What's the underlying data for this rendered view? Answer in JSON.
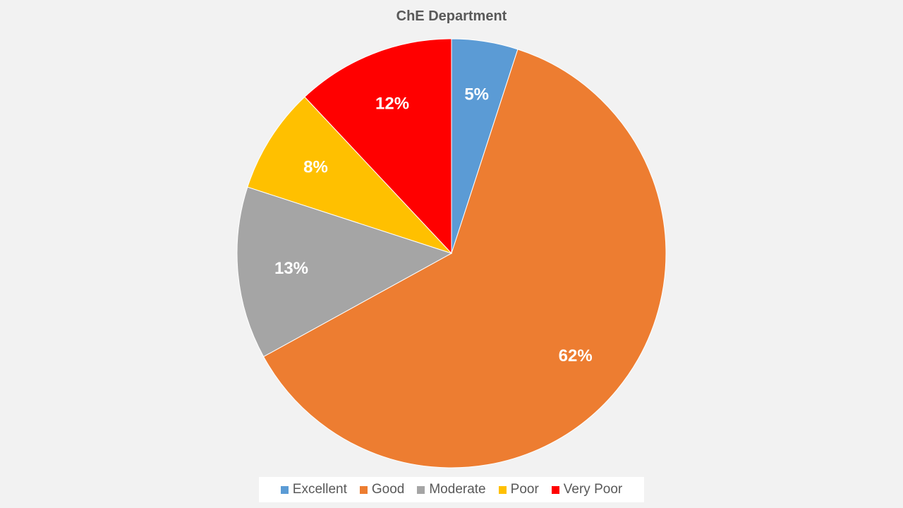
{
  "chart_data": {
    "type": "pie",
    "title": "ChE Department",
    "categories": [
      "Excellent",
      "Good",
      "Moderate",
      "Poor",
      "Very Poor"
    ],
    "values": [
      5,
      62,
      13,
      8,
      12
    ],
    "labels": [
      "5%",
      "62%",
      "13%",
      "8%",
      "12%"
    ],
    "colors": [
      "#5b9bd5",
      "#ed7d31",
      "#a5a5a5",
      "#ffc000",
      "#ff0000"
    ],
    "start": "top",
    "direction": "clockwise",
    "legend_position": "bottom"
  }
}
